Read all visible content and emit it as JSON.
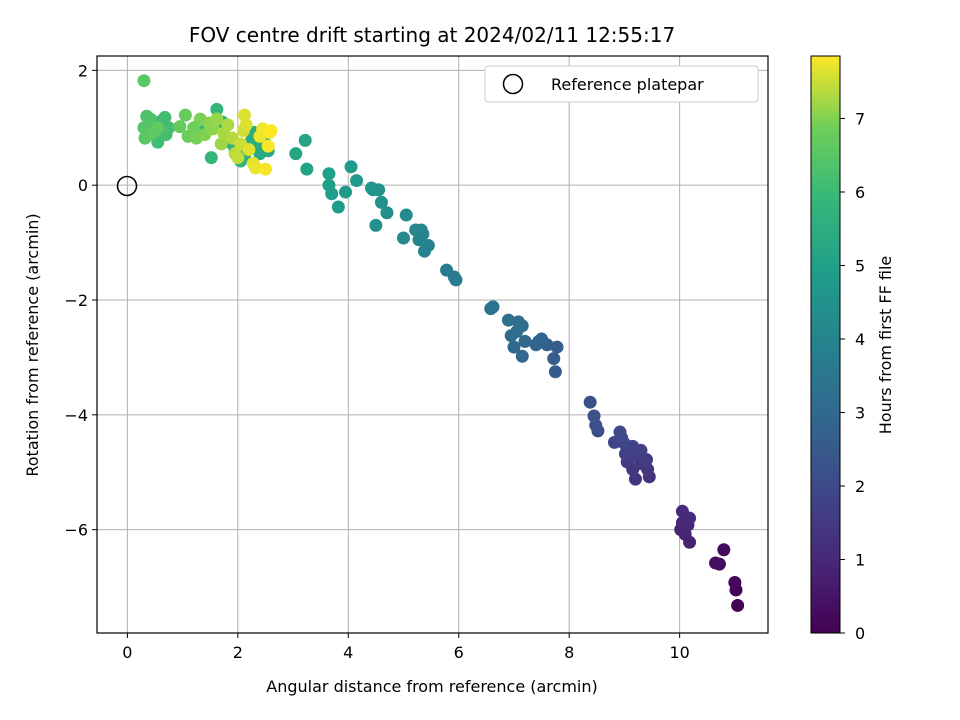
{
  "chart_data": {
    "type": "scatter",
    "title": "FOV centre drift starting at 2024/02/11 12:55:17",
    "xlabel": "Angular distance from reference (arcmin)",
    "ylabel": "Rotation from reference (arcmin)",
    "xlim": [
      -0.55,
      11.6
    ],
    "ylim": [
      -7.8,
      2.25
    ],
    "xticks": [
      0,
      2,
      4,
      6,
      8,
      10
    ],
    "yticks": [
      2,
      0,
      -2,
      -4,
      -6
    ],
    "grid": true,
    "legend": {
      "position": "top-right",
      "entries": [
        "Reference platepar"
      ]
    },
    "reference_point": {
      "x": 0,
      "y": 0,
      "label": "Reference platepar"
    },
    "colorbar": {
      "label": "Hours from first FF file",
      "colormap": "viridis",
      "range": [
        0,
        7.85
      ],
      "ticks": [
        0,
        1,
        2,
        3,
        4,
        5,
        6,
        7
      ]
    },
    "points": [
      [
        11.05,
        -7.32,
        0.05
      ],
      [
        11.02,
        -7.05,
        0.1
      ],
      [
        11.0,
        -6.92,
        0.15
      ],
      [
        10.8,
        -6.35,
        0.25
      ],
      [
        10.72,
        -6.6,
        0.3
      ],
      [
        10.65,
        -6.58,
        0.35
      ],
      [
        10.18,
        -6.22,
        0.8
      ],
      [
        10.1,
        -6.08,
        0.85
      ],
      [
        10.02,
        -6.0,
        0.9
      ],
      [
        10.15,
        -5.92,
        0.95
      ],
      [
        10.05,
        -5.88,
        1.0
      ],
      [
        10.18,
        -5.8,
        1.05
      ],
      [
        10.05,
        -5.68,
        1.1
      ],
      [
        9.45,
        -5.08,
        1.3
      ],
      [
        9.2,
        -5.12,
        1.35
      ],
      [
        9.42,
        -4.95,
        1.4
      ],
      [
        9.15,
        -4.95,
        1.45
      ],
      [
        9.3,
        -4.85,
        1.5
      ],
      [
        9.05,
        -4.82,
        1.55
      ],
      [
        9.4,
        -4.78,
        1.6
      ],
      [
        9.18,
        -4.72,
        1.65
      ],
      [
        9.02,
        -4.68,
        1.7
      ],
      [
        9.3,
        -4.62,
        1.75
      ],
      [
        9.15,
        -4.55,
        1.8
      ],
      [
        9.0,
        -4.5,
        1.85
      ],
      [
        8.82,
        -4.48,
        1.9
      ],
      [
        8.95,
        -4.4,
        1.95
      ],
      [
        8.92,
        -4.3,
        2.0
      ],
      [
        8.52,
        -4.28,
        2.1
      ],
      [
        8.48,
        -4.18,
        2.15
      ],
      [
        8.45,
        -4.02,
        2.2
      ],
      [
        8.38,
        -3.78,
        2.25
      ],
      [
        7.75,
        -3.25,
        2.55
      ],
      [
        7.72,
        -3.02,
        2.6
      ],
      [
        7.78,
        -2.82,
        2.65
      ],
      [
        7.6,
        -2.78,
        2.7
      ],
      [
        7.4,
        -2.78,
        2.75
      ],
      [
        7.5,
        -2.68,
        2.8
      ],
      [
        7.45,
        -2.72,
        2.85
      ],
      [
        7.15,
        -2.98,
        2.9
      ],
      [
        7.2,
        -2.72,
        2.95
      ],
      [
        7.0,
        -2.82,
        3.0
      ],
      [
        6.95,
        -2.62,
        3.05
      ],
      [
        7.05,
        -2.55,
        3.1
      ],
      [
        7.15,
        -2.45,
        3.15
      ],
      [
        7.08,
        -2.38,
        3.2
      ],
      [
        6.9,
        -2.35,
        3.25
      ],
      [
        6.62,
        -2.12,
        3.35
      ],
      [
        6.58,
        -2.15,
        3.4
      ],
      [
        5.95,
        -1.65,
        3.6
      ],
      [
        5.92,
        -1.6,
        3.65
      ],
      [
        5.78,
        -1.48,
        3.7
      ],
      [
        5.45,
        -1.05,
        3.85
      ],
      [
        5.38,
        -1.15,
        3.9
      ],
      [
        5.35,
        -0.85,
        3.95
      ],
      [
        5.28,
        -0.95,
        4.0
      ],
      [
        5.22,
        -0.78,
        4.05
      ],
      [
        5.32,
        -0.78,
        4.1
      ],
      [
        5.0,
        -0.92,
        4.15
      ],
      [
        5.05,
        -0.52,
        4.2
      ],
      [
        4.7,
        -0.48,
        4.35
      ],
      [
        4.5,
        -0.7,
        4.4
      ],
      [
        4.6,
        -0.3,
        4.45
      ],
      [
        4.55,
        -0.08,
        4.5
      ],
      [
        4.45,
        -0.08,
        4.55
      ],
      [
        4.42,
        -0.05,
        4.6
      ],
      [
        4.15,
        0.08,
        4.7
      ],
      [
        4.05,
        0.32,
        4.75
      ],
      [
        3.95,
        -0.12,
        4.8
      ],
      [
        3.82,
        -0.38,
        4.85
      ],
      [
        3.7,
        -0.15,
        4.9
      ],
      [
        3.65,
        0.0,
        4.95
      ],
      [
        3.65,
        0.2,
        5.0
      ],
      [
        3.25,
        0.28,
        5.1
      ],
      [
        3.22,
        0.78,
        5.15
      ],
      [
        3.05,
        0.55,
        5.2
      ],
      [
        2.55,
        0.6,
        5.2
      ],
      [
        2.5,
        0.72,
        5.25
      ],
      [
        2.45,
        0.8,
        5.3
      ],
      [
        2.4,
        0.55,
        5.35
      ],
      [
        2.35,
        0.68,
        5.4
      ],
      [
        2.3,
        0.92,
        5.45
      ],
      [
        2.25,
        0.78,
        5.5
      ],
      [
        2.2,
        0.7,
        5.55
      ],
      [
        2.12,
        0.5,
        5.6
      ],
      [
        2.05,
        0.42,
        5.65
      ],
      [
        1.95,
        0.62,
        5.7
      ],
      [
        1.85,
        0.75,
        5.75
      ],
      [
        1.62,
        1.32,
        5.8
      ],
      [
        1.52,
        0.48,
        5.85
      ],
      [
        1.72,
        1.1,
        5.9
      ],
      [
        1.4,
        0.95,
        5.95
      ],
      [
        0.62,
        1.12,
        6.0
      ],
      [
        0.55,
        0.75,
        6.05
      ],
      [
        0.68,
        1.18,
        6.1
      ],
      [
        0.75,
        1.0,
        6.15
      ],
      [
        0.7,
        0.88,
        6.2
      ],
      [
        0.5,
        0.95,
        6.25
      ],
      [
        0.42,
        1.15,
        6.3
      ],
      [
        0.35,
        1.2,
        6.35
      ],
      [
        0.38,
        1.05,
        6.4
      ],
      [
        0.3,
        1.0,
        6.45
      ],
      [
        0.32,
        0.82,
        6.5
      ],
      [
        0.3,
        1.82,
        6.55
      ],
      [
        0.45,
        0.9,
        6.6
      ],
      [
        0.55,
        1.0,
        6.65
      ],
      [
        0.95,
        1.02,
        6.7
      ],
      [
        1.05,
        1.22,
        6.75
      ],
      [
        1.1,
        0.85,
        6.8
      ],
      [
        1.2,
        1.0,
        6.85
      ],
      [
        1.25,
        0.82,
        6.9
      ],
      [
        1.32,
        1.15,
        6.95
      ],
      [
        1.4,
        0.88,
        7.0
      ],
      [
        1.48,
        1.08,
        7.05
      ],
      [
        1.55,
        0.98,
        7.1
      ],
      [
        1.62,
        1.15,
        7.15
      ],
      [
        1.7,
        0.72,
        7.2
      ],
      [
        1.75,
        0.9,
        7.25
      ],
      [
        1.82,
        1.05,
        7.3
      ],
      [
        1.9,
        0.82,
        7.35
      ],
      [
        1.95,
        0.55,
        7.4
      ],
      [
        2.0,
        0.48,
        7.45
      ],
      [
        2.05,
        0.72,
        7.5
      ],
      [
        2.1,
        0.95,
        7.55
      ],
      [
        2.12,
        1.22,
        7.6
      ],
      [
        2.15,
        1.05,
        7.62
      ],
      [
        2.2,
        0.62,
        7.65
      ],
      [
        2.28,
        0.38,
        7.7
      ],
      [
        2.32,
        0.3,
        7.72
      ],
      [
        2.4,
        0.85,
        7.75
      ],
      [
        2.45,
        0.98,
        7.78
      ],
      [
        2.5,
        0.28,
        7.8
      ],
      [
        2.55,
        0.68,
        7.82
      ],
      [
        2.58,
        0.92,
        7.84
      ],
      [
        2.6,
        0.95,
        7.85
      ]
    ]
  }
}
